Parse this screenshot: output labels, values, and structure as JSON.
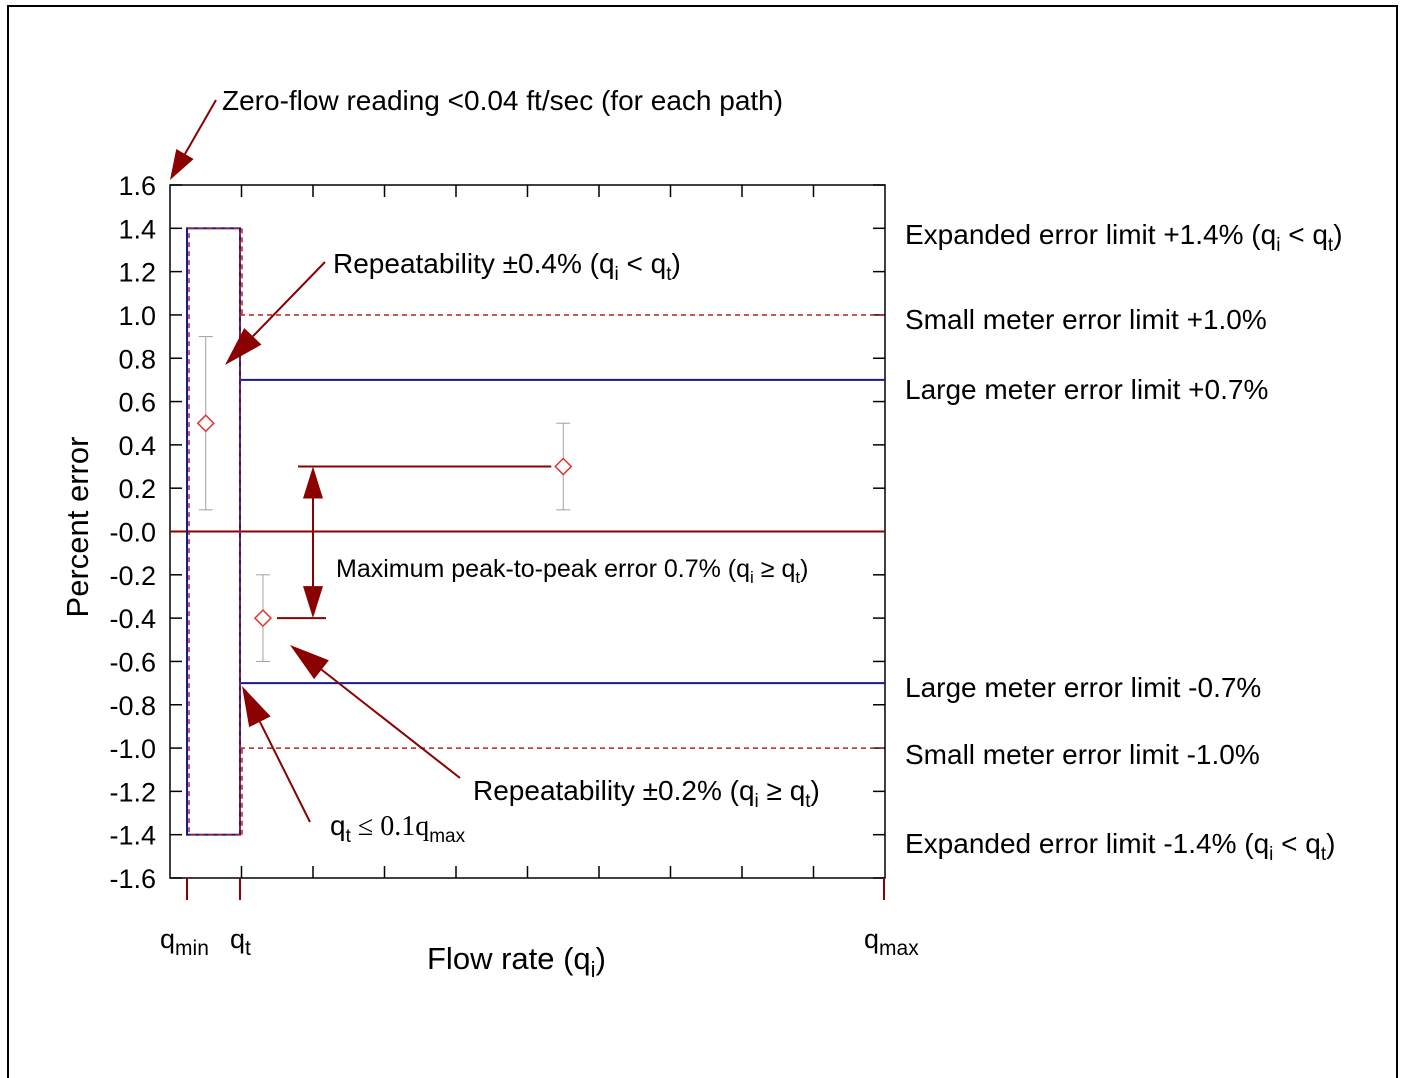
{
  "chart_data": {
    "type": "scatter",
    "ylabel": "Percent error",
    "xlabel": {
      "main": "Flow rate (q",
      "sub": "i",
      "close": ")"
    },
    "ylim": [
      -1.6,
      1.6
    ],
    "ytick_step": 0.2,
    "ytick_labels": [
      "1.6",
      "1.4",
      "1.2",
      "1.0",
      "0.8",
      "0.6",
      "0.4",
      "0.2",
      "-0.0",
      "-0.2",
      "-0.4",
      "-0.6",
      "-0.8",
      "-1.0",
      "-1.2",
      "-1.4",
      "-1.6"
    ],
    "x_tick_labels": [
      {
        "base": "q",
        "sub": "min"
      },
      {
        "base": "q",
        "sub": "t"
      },
      {
        "base": "q",
        "sub": "max"
      }
    ],
    "points": [
      {
        "x": 0.05,
        "y": 0.5,
        "err_low": 0.1,
        "err_high": 0.9
      },
      {
        "x": 0.55,
        "y": 0.3,
        "err_low": 0.1,
        "err_high": 0.5
      },
      {
        "x": 0.13,
        "y": -0.4,
        "err_low": -0.6,
        "err_high": -0.2
      }
    ],
    "limits": {
      "expanded": 1.4,
      "small_meter": 1.0,
      "large_meter": 0.7
    },
    "peak_to_peak": {
      "top": 0.3,
      "bottom": -0.4
    },
    "colors": {
      "dark_red": "#8B0000",
      "navy": "#1a1a8c",
      "point": "#e03030",
      "errbar": "#a0a0a0",
      "dashed": "#b22222"
    }
  },
  "annotations": {
    "zero_flow": "Zero-flow reading <0.04 ft/sec (for each path)",
    "repeat_low": {
      "pre": "Repeatability ±0.4% (q",
      "sub1": "i",
      "mid": " < q",
      "sub2": "t",
      "post": ")"
    },
    "peak": {
      "pre": "Maximum peak-to-peak error 0.7% (q",
      "sub1": "i",
      "mid": " ≥ q",
      "sub2": "t",
      "post": ")"
    },
    "repeat_high": {
      "pre": "Repeatability ±0.2% (q",
      "sub1": "i",
      "mid": " ≥ q",
      "sub2": "t",
      "post": ")"
    },
    "qt_cond": {
      "pre": "q",
      "sub1": "t",
      "mid": " ≤ 0.1q",
      "sub2": "max"
    }
  },
  "right_labels": {
    "exp_pos": {
      "pre": "Expanded error limit +1.4% (q",
      "sub1": "i",
      "mid": " < q",
      "sub2": "t",
      "post": ")"
    },
    "small_pos": "Small meter error limit +1.0%",
    "large_pos": "Large meter error limit +0.7%",
    "large_neg": "Large meter error limit -0.7%",
    "small_neg": "Small meter error limit -1.0%",
    "exp_neg": {
      "pre": "Expanded error limit -1.4% (q",
      "sub1": "i",
      "mid": " < q",
      "sub2": "t",
      "post": ")"
    }
  }
}
